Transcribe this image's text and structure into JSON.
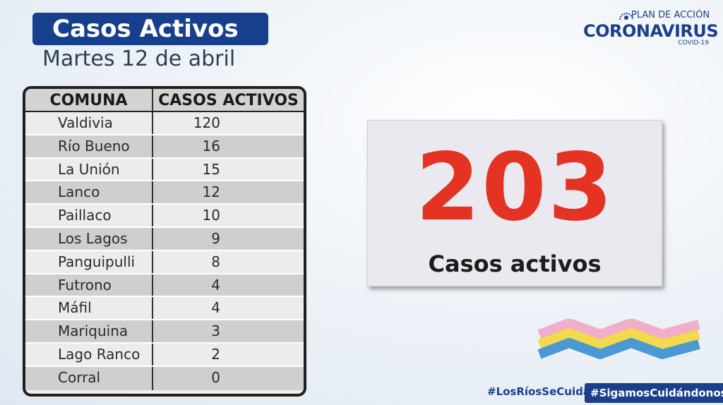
{
  "header": {
    "title": "Casos Activos",
    "date": "Martes 12  de abril"
  },
  "logo": {
    "plan": "PLAN DE ACCIÓN",
    "name": "CORONAVIRUS",
    "sub": "COVID-19"
  },
  "table": {
    "headers": [
      "COMUNA",
      "CASOS ACTIVOS"
    ],
    "rows": [
      {
        "comuna": "Valdivia",
        "casos": "120"
      },
      {
        "comuna": "Río Bueno",
        "casos": "16"
      },
      {
        "comuna": "La Unión",
        "casos": "15"
      },
      {
        "comuna": "Lanco",
        "casos": "12"
      },
      {
        "comuna": "Paillaco",
        "casos": "10"
      },
      {
        "comuna": "Los Lagos",
        "casos": "9"
      },
      {
        "comuna": "Panguipulli",
        "casos": "8"
      },
      {
        "comuna": "Futrono",
        "casos": "4"
      },
      {
        "comuna": "Máfil",
        "casos": "4"
      },
      {
        "comuna": "Mariquina",
        "casos": "3"
      },
      {
        "comuna": "Lago Ranco",
        "casos": "2"
      },
      {
        "comuna": "Corral",
        "casos": "0"
      }
    ]
  },
  "total": {
    "number": "203",
    "label": "Casos activos"
  },
  "footer": {
    "hashtag1": "#LosRíosSeCuida",
    "hashtag2": "#SigamosCuidándonos"
  },
  "colors": {
    "brand_blue": "#16408e",
    "total_red": "#e43323",
    "wave_pink": "#f2a6c4",
    "wave_yellow": "#f4d63a",
    "wave_blue": "#3a8fd0"
  }
}
